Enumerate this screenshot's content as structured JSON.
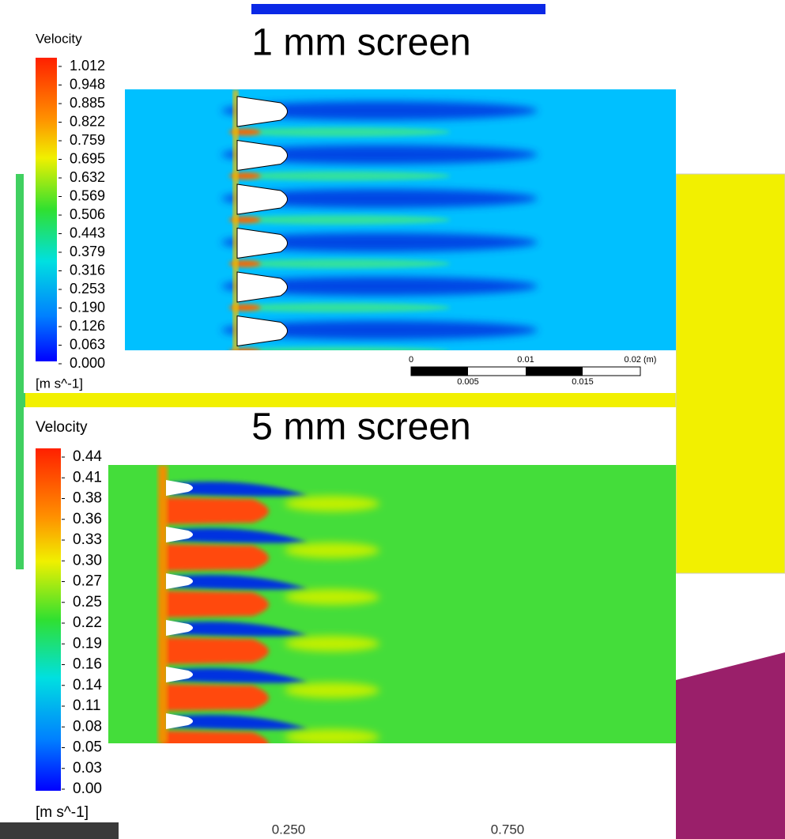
{
  "top_panel": {
    "title": "1 mm screen",
    "legend": {
      "title": "Velocity",
      "labels": [
        "1.012",
        "0.948",
        "0.885",
        "0.822",
        "0.759",
        "0.695",
        "0.632",
        "0.569",
        "0.506",
        "0.443",
        "0.379",
        "0.316",
        "0.253",
        "0.190",
        "0.126",
        "0.063",
        "0.000"
      ],
      "unit": "[m s^-1]"
    },
    "scale_bar": {
      "top_labels": [
        "0",
        "0.01",
        "0.02  (m)"
      ],
      "bottom_labels": [
        "0.005",
        "0.015"
      ]
    }
  },
  "bottom_panel": {
    "title": "5 mm screen",
    "legend": {
      "title": "Velocity",
      "labels": [
        "0.44",
        "0.41",
        "0.38",
        "0.36",
        "0.33",
        "0.30",
        "0.27",
        "0.25",
        "0.22",
        "0.19",
        "0.16",
        "0.14",
        "0.11",
        "0.08",
        "0.05",
        "0.03",
        "0.00"
      ],
      "unit": "[m s^-1]"
    }
  },
  "background_axis": {
    "labels": [
      "0.250",
      "0.750"
    ]
  }
}
